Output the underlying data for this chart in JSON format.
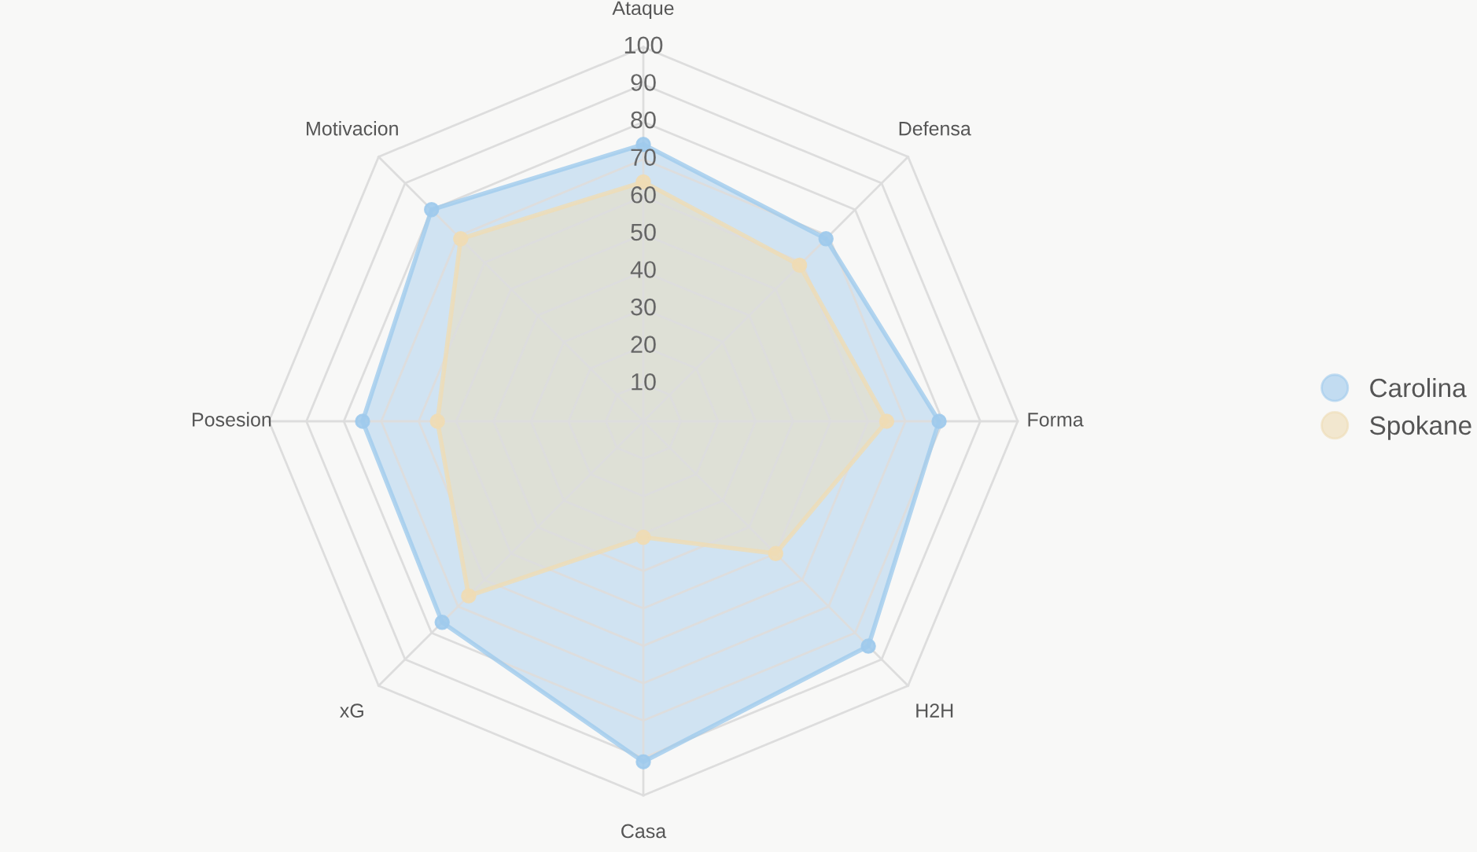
{
  "chart_data": {
    "type": "radar",
    "categories": [
      "Ataque",
      "Defensa",
      "Forma",
      "H2H",
      "Casa",
      "xG",
      "Posesion",
      "Motivacion"
    ],
    "ylim": [
      0,
      100
    ],
    "yticks": [
      10,
      20,
      30,
      40,
      50,
      60,
      70,
      80,
      90,
      100
    ],
    "grid": true,
    "legend": "right",
    "marker": "circle",
    "series": [
      {
        "name": "Carolina",
        "color": "#9fcaec",
        "values": [
          74,
          69,
          79,
          85,
          91,
          76,
          75,
          80
        ]
      },
      {
        "name": "Spokane",
        "color": "#efdcb4",
        "values": [
          64,
          59,
          65,
          50,
          31,
          66,
          55,
          69
        ]
      }
    ]
  }
}
